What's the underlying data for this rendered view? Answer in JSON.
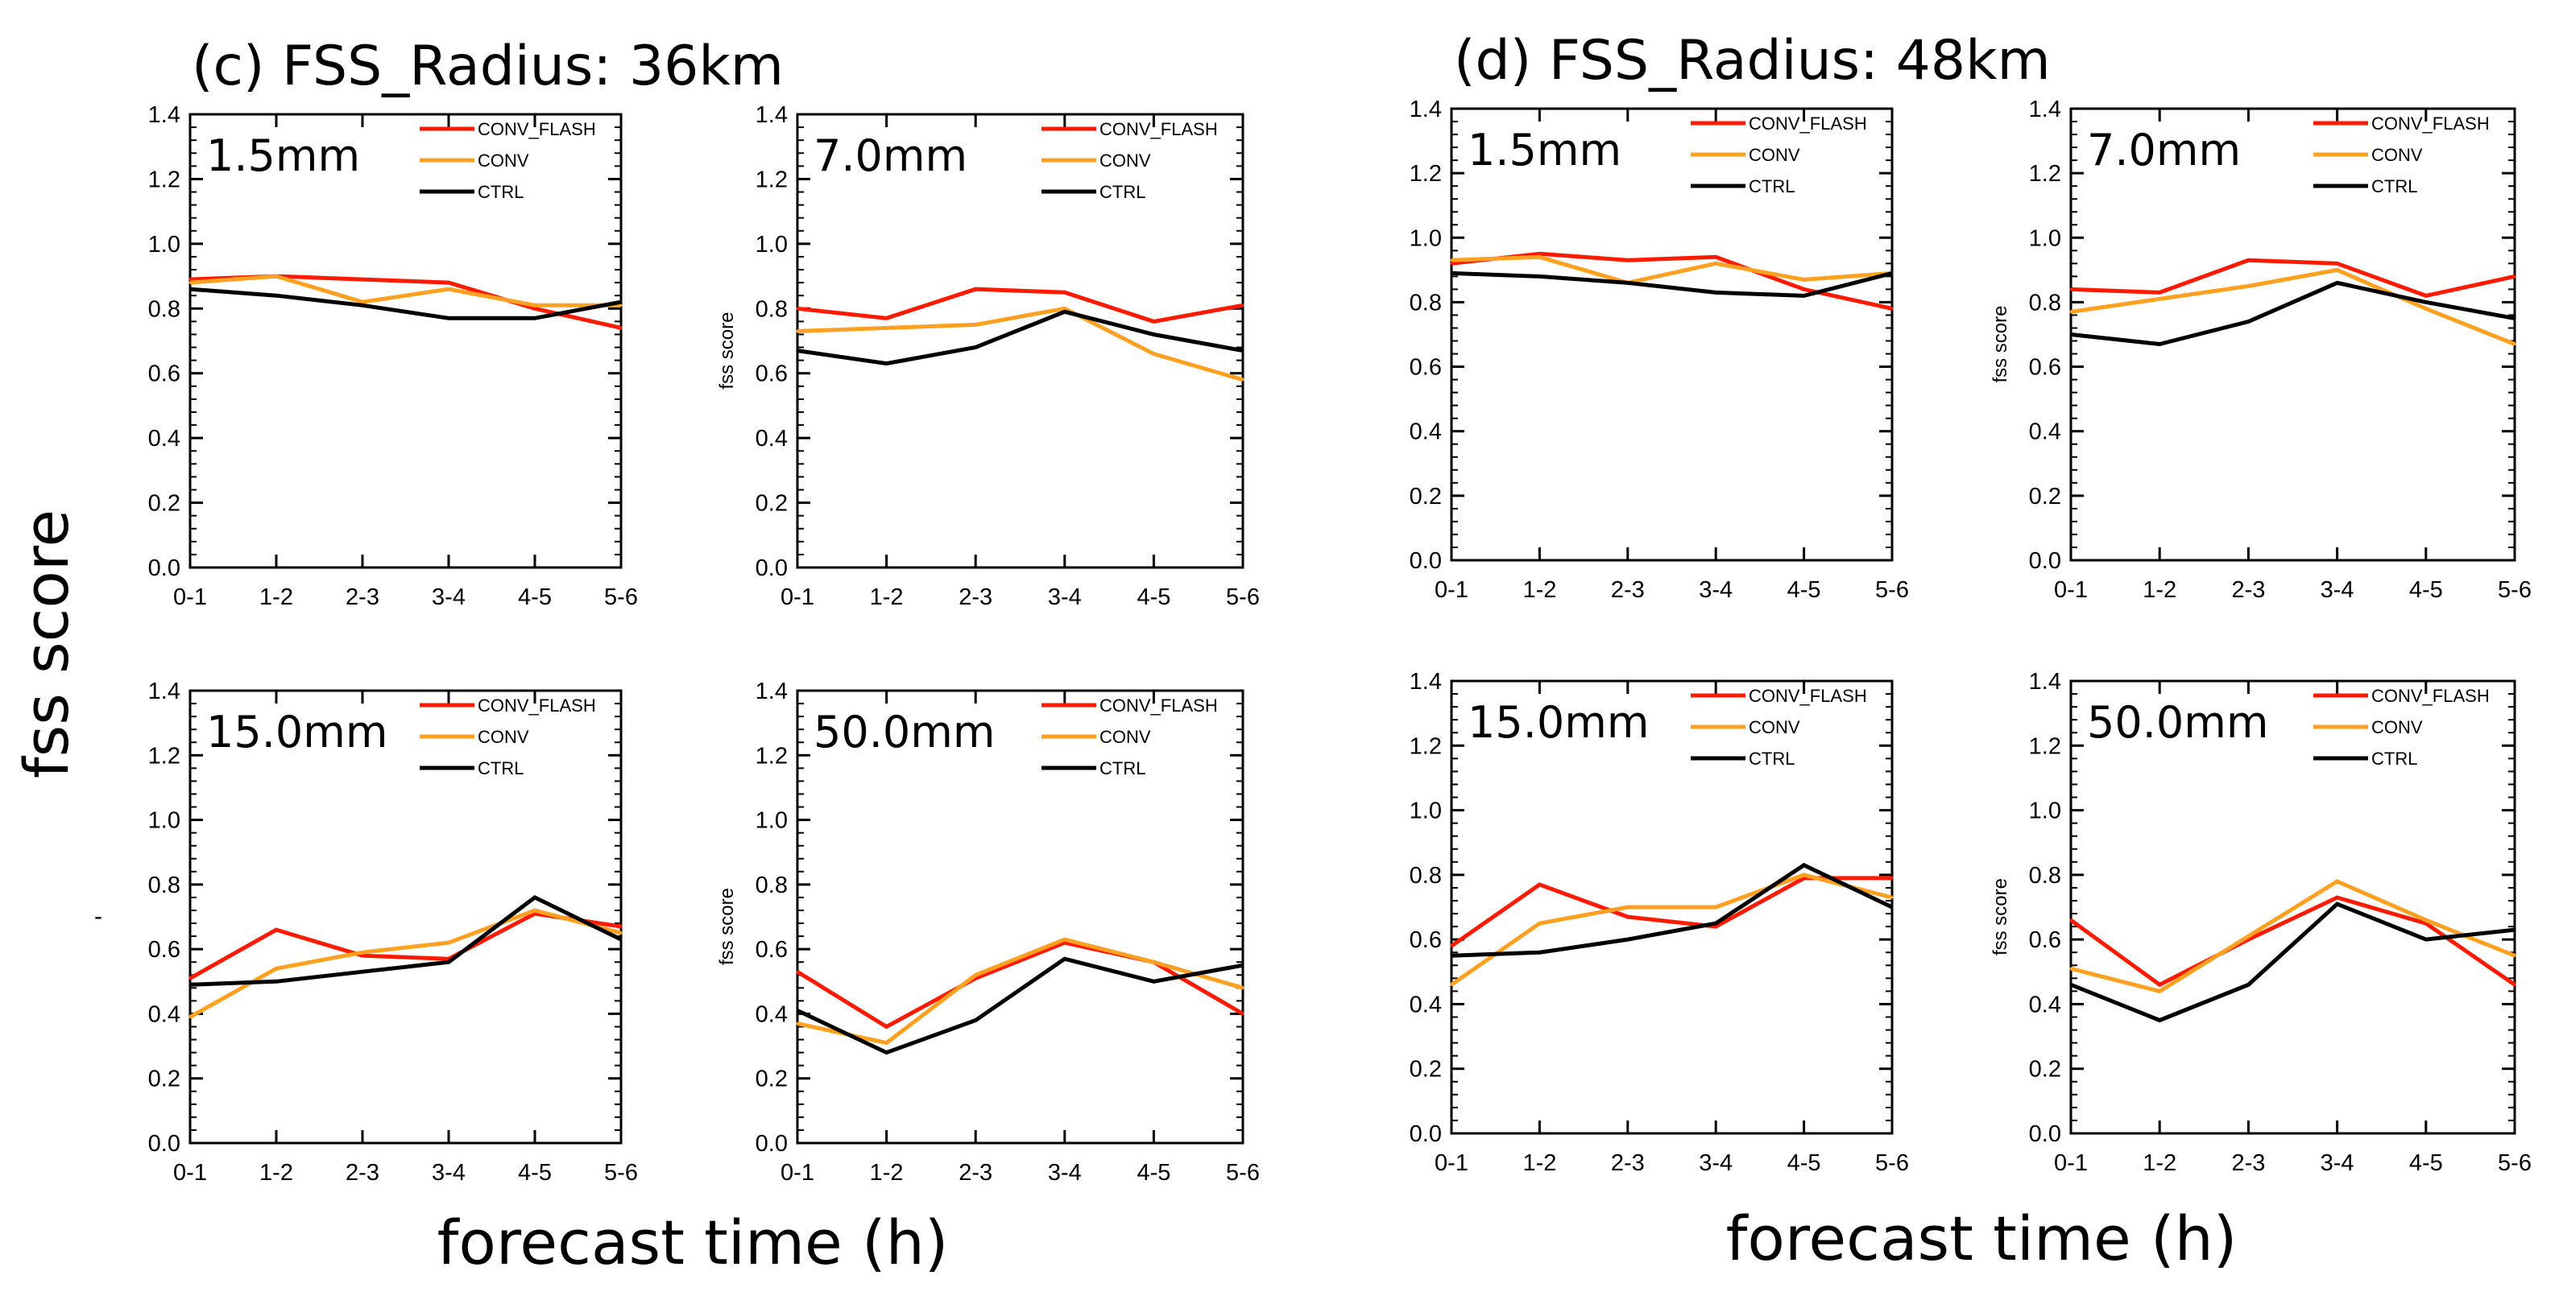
{
  "figure": {
    "ylabel": "fss score",
    "xlabel": "forecast time (h)",
    "stray_mark": "-"
  },
  "colors": {
    "CONV_FLASH": "#ff1a00",
    "CONV": "#ffa020",
    "CTRL": "#000000"
  },
  "chart_data": [
    {
      "group_title": "(c) FSS_Radius: 36km",
      "panels": [
        {
          "type": "line",
          "threshold": "1.5mm",
          "ylabel": "",
          "categories": [
            "0-1",
            "1-2",
            "2-3",
            "3-4",
            "4-5",
            "5-6"
          ],
          "ylim": [
            0,
            1.4
          ],
          "yticks": [
            "0.0",
            "0.2",
            "0.4",
            "0.6",
            "0.8",
            "1.0",
            "1.2",
            "1.4"
          ],
          "legend": [
            "CONV_FLASH",
            "CONV",
            "CTRL"
          ],
          "series": [
            {
              "name": "CONV_FLASH",
              "values": [
                0.89,
                0.9,
                0.89,
                0.88,
                0.8,
                0.74
              ]
            },
            {
              "name": "CONV",
              "values": [
                0.88,
                0.9,
                0.82,
                0.86,
                0.81,
                0.81
              ]
            },
            {
              "name": "CTRL",
              "values": [
                0.86,
                0.84,
                0.81,
                0.77,
                0.77,
                0.82
              ]
            }
          ]
        },
        {
          "type": "line",
          "threshold": "7.0mm",
          "ylabel": "fss score",
          "categories": [
            "0-1",
            "1-2",
            "2-3",
            "3-4",
            "4-5",
            "5-6"
          ],
          "ylim": [
            0,
            1.4
          ],
          "yticks": [
            "0.0",
            "0.2",
            "0.4",
            "0.6",
            "0.8",
            "1.0",
            "1.2",
            "1.4"
          ],
          "legend": [
            "CONV_FLASH",
            "CONV",
            "CTRL"
          ],
          "series": [
            {
              "name": "CONV_FLASH",
              "values": [
                0.8,
                0.77,
                0.86,
                0.85,
                0.76,
                0.81
              ]
            },
            {
              "name": "CONV",
              "values": [
                0.73,
                0.74,
                0.75,
                0.8,
                0.66,
                0.58
              ]
            },
            {
              "name": "CTRL",
              "values": [
                0.67,
                0.63,
                0.68,
                0.79,
                0.72,
                0.67
              ]
            }
          ]
        },
        {
          "type": "line",
          "threshold": "15.0mm",
          "ylabel": "",
          "categories": [
            "0-1",
            "1-2",
            "2-3",
            "3-4",
            "4-5",
            "5-6"
          ],
          "ylim": [
            0,
            1.4
          ],
          "yticks": [
            "0.0",
            "0.2",
            "0.4",
            "0.6",
            "0.8",
            "1.0",
            "1.2",
            "1.4"
          ],
          "legend": [
            "CONV_FLASH",
            "CONV",
            "CTRL"
          ],
          "series": [
            {
              "name": "CONV_FLASH",
              "values": [
                0.51,
                0.66,
                0.58,
                0.57,
                0.71,
                0.67
              ]
            },
            {
              "name": "CONV",
              "values": [
                0.39,
                0.54,
                0.59,
                0.62,
                0.72,
                0.65
              ]
            },
            {
              "name": "CTRL",
              "values": [
                0.49,
                0.5,
                0.53,
                0.56,
                0.76,
                0.63
              ]
            }
          ]
        },
        {
          "type": "line",
          "threshold": "50.0mm",
          "ylabel": "fss score",
          "categories": [
            "0-1",
            "1-2",
            "2-3",
            "3-4",
            "4-5",
            "5-6"
          ],
          "ylim": [
            0,
            1.4
          ],
          "yticks": [
            "0.0",
            "0.2",
            "0.4",
            "0.6",
            "0.8",
            "1.0",
            "1.2",
            "1.4"
          ],
          "legend": [
            "CONV_FLASH",
            "CONV",
            "CTRL"
          ],
          "series": [
            {
              "name": "CONV_FLASH",
              "values": [
                0.53,
                0.36,
                0.51,
                0.62,
                0.56,
                0.4
              ]
            },
            {
              "name": "CONV",
              "values": [
                0.37,
                0.31,
                0.52,
                0.63,
                0.56,
                0.48
              ]
            },
            {
              "name": "CTRL",
              "values": [
                0.41,
                0.28,
                0.38,
                0.57,
                0.5,
                0.55
              ]
            }
          ]
        }
      ]
    },
    {
      "group_title": "(d) FSS_Radius: 48km",
      "panels": [
        {
          "type": "line",
          "threshold": "1.5mm",
          "ylabel": "",
          "categories": [
            "0-1",
            "1-2",
            "2-3",
            "3-4",
            "4-5",
            "5-6"
          ],
          "ylim": [
            0,
            1.4
          ],
          "yticks": [
            "0.0",
            "0.2",
            "0.4",
            "0.6",
            "0.8",
            "1.0",
            "1.2",
            "1.4"
          ],
          "legend": [
            "CONV_FLASH",
            "CONV",
            "CTRL"
          ],
          "series": [
            {
              "name": "CONV_FLASH",
              "values": [
                0.92,
                0.95,
                0.93,
                0.94,
                0.84,
                0.78
              ]
            },
            {
              "name": "CONV",
              "values": [
                0.93,
                0.94,
                0.86,
                0.92,
                0.87,
                0.89
              ]
            },
            {
              "name": "CTRL",
              "values": [
                0.89,
                0.88,
                0.86,
                0.83,
                0.82,
                0.89
              ]
            }
          ]
        },
        {
          "type": "line",
          "threshold": "7.0mm",
          "ylabel": "fss score",
          "categories": [
            "0-1",
            "1-2",
            "2-3",
            "3-4",
            "4-5",
            "5-6"
          ],
          "ylim": [
            0,
            1.4
          ],
          "yticks": [
            "0.0",
            "0.2",
            "0.4",
            "0.6",
            "0.8",
            "1.0",
            "1.2",
            "1.4"
          ],
          "legend": [
            "CONV_FLASH",
            "CONV",
            "CTRL"
          ],
          "series": [
            {
              "name": "CONV_FLASH",
              "values": [
                0.84,
                0.83,
                0.93,
                0.92,
                0.82,
                0.88
              ]
            },
            {
              "name": "CONV",
              "values": [
                0.77,
                0.81,
                0.85,
                0.9,
                0.78,
                0.67
              ]
            },
            {
              "name": "CTRL",
              "values": [
                0.7,
                0.67,
                0.74,
                0.86,
                0.8,
                0.75
              ]
            }
          ]
        },
        {
          "type": "line",
          "threshold": "15.0mm",
          "ylabel": "",
          "categories": [
            "0-1",
            "1-2",
            "2-3",
            "3-4",
            "4-5",
            "5-6"
          ],
          "ylim": [
            0,
            1.4
          ],
          "yticks": [
            "0.0",
            "0.2",
            "0.4",
            "0.6",
            "0.8",
            "1.0",
            "1.2",
            "1.4"
          ],
          "legend": [
            "CONV_FLASH",
            "CONV",
            "CTRL"
          ],
          "series": [
            {
              "name": "CONV_FLASH",
              "values": [
                0.58,
                0.77,
                0.67,
                0.64,
                0.79,
                0.79
              ]
            },
            {
              "name": "CONV",
              "values": [
                0.46,
                0.65,
                0.7,
                0.7,
                0.8,
                0.73
              ]
            },
            {
              "name": "CTRL",
              "values": [
                0.55,
                0.56,
                0.6,
                0.65,
                0.83,
                0.7
              ]
            }
          ]
        },
        {
          "type": "line",
          "threshold": "50.0mm",
          "ylabel": "fss score",
          "categories": [
            "0-1",
            "1-2",
            "2-3",
            "3-4",
            "4-5",
            "5-6"
          ],
          "ylim": [
            0,
            1.4
          ],
          "yticks": [
            "0.0",
            "0.2",
            "0.4",
            "0.6",
            "0.8",
            "1.0",
            "1.2",
            "1.4"
          ],
          "legend": [
            "CONV_FLASH",
            "CONV",
            "CTRL"
          ],
          "series": [
            {
              "name": "CONV_FLASH",
              "values": [
                0.66,
                0.46,
                0.6,
                0.73,
                0.65,
                0.46
              ]
            },
            {
              "name": "CONV",
              "values": [
                0.51,
                0.44,
                0.61,
                0.78,
                0.66,
                0.55
              ]
            },
            {
              "name": "CTRL",
              "values": [
                0.46,
                0.35,
                0.46,
                0.71,
                0.6,
                0.63
              ]
            }
          ]
        }
      ]
    }
  ]
}
